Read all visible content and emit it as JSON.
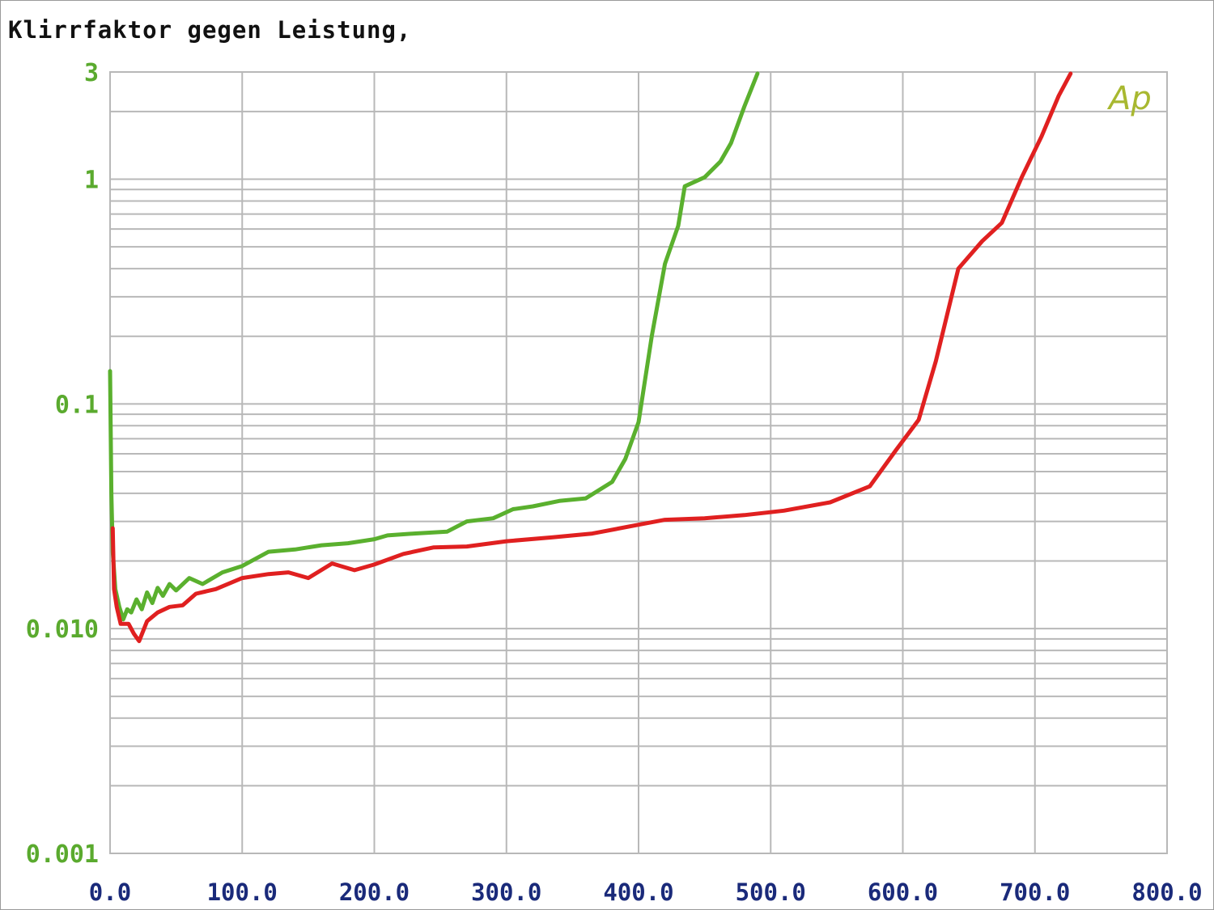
{
  "title": "Klirrfaktor gegen Leistung,",
  "chart_data": {
    "type": "line",
    "title": "Klirrfaktor gegen Leistung,",
    "xlabel": "",
    "ylabel": "",
    "xlim": [
      0,
      800
    ],
    "ylim": [
      0.001,
      3
    ],
    "yscale": "log",
    "grid": true,
    "legend": "none",
    "brand_label": "Ap",
    "colors": {
      "grid": "#b8b8b8",
      "ytick": "#5aaa2e",
      "xtick": "#1a2a7a",
      "brand": "#a8b830",
      "green_series": "#5ab02e",
      "red_series": "#e02020"
    },
    "x_ticks": [
      {
        "value": 0,
        "label": "0.0"
      },
      {
        "value": 100,
        "label": "100.0"
      },
      {
        "value": 200,
        "label": "200.0"
      },
      {
        "value": 300,
        "label": "300.0"
      },
      {
        "value": 400,
        "label": "400.0"
      },
      {
        "value": 500,
        "label": "500.0"
      },
      {
        "value": 600,
        "label": "600.0"
      },
      {
        "value": 700,
        "label": "700.0"
      },
      {
        "value": 800,
        "label": "800.0"
      }
    ],
    "y_ticks": [
      {
        "value": 3,
        "label": "3"
      },
      {
        "value": 1,
        "label": "1"
      },
      {
        "value": 0.1,
        "label": "0.1"
      },
      {
        "value": 0.01,
        "label": "0.010"
      },
      {
        "value": 0.001,
        "label": "0.001"
      }
    ],
    "series": [
      {
        "color": "#5ab02e",
        "points": [
          [
            0,
            0.14
          ],
          [
            1,
            0.04
          ],
          [
            2,
            0.022
          ],
          [
            4,
            0.015
          ],
          [
            7,
            0.0125
          ],
          [
            10,
            0.011
          ],
          [
            13,
            0.0122
          ],
          [
            16,
            0.0118
          ],
          [
            20,
            0.0135
          ],
          [
            24,
            0.0122
          ],
          [
            28,
            0.0145
          ],
          [
            32,
            0.013
          ],
          [
            36,
            0.0152
          ],
          [
            40,
            0.014
          ],
          [
            45,
            0.0158
          ],
          [
            50,
            0.0148
          ],
          [
            60,
            0.0168
          ],
          [
            70,
            0.0158
          ],
          [
            85,
            0.0178
          ],
          [
            100,
            0.019
          ],
          [
            120,
            0.022
          ],
          [
            140,
            0.0225
          ],
          [
            160,
            0.0235
          ],
          [
            180,
            0.024
          ],
          [
            200,
            0.025
          ],
          [
            210,
            0.026
          ],
          [
            230,
            0.0265
          ],
          [
            255,
            0.027
          ],
          [
            270,
            0.03
          ],
          [
            290,
            0.031
          ],
          [
            305,
            0.034
          ],
          [
            320,
            0.035
          ],
          [
            340,
            0.037
          ],
          [
            360,
            0.038
          ],
          [
            380,
            0.045
          ],
          [
            390,
            0.057
          ],
          [
            400,
            0.083
          ],
          [
            410,
            0.2
          ],
          [
            420,
            0.42
          ],
          [
            430,
            0.62
          ],
          [
            435,
            0.93
          ],
          [
            450,
            1.02
          ],
          [
            462,
            1.2
          ],
          [
            470,
            1.45
          ],
          [
            480,
            2.1
          ],
          [
            490,
            2.95
          ]
        ]
      },
      {
        "color": "#e02020",
        "points": [
          [
            2,
            0.028
          ],
          [
            3,
            0.015
          ],
          [
            5,
            0.0125
          ],
          [
            8,
            0.0105
          ],
          [
            14,
            0.0105
          ],
          [
            18,
            0.0095
          ],
          [
            22,
            0.0088
          ],
          [
            28,
            0.0108
          ],
          [
            36,
            0.0118
          ],
          [
            45,
            0.0125
          ],
          [
            55,
            0.0127
          ],
          [
            65,
            0.0143
          ],
          [
            80,
            0.015
          ],
          [
            100,
            0.0168
          ],
          [
            120,
            0.0175
          ],
          [
            135,
            0.0178
          ],
          [
            150,
            0.0168
          ],
          [
            168,
            0.0195
          ],
          [
            185,
            0.0182
          ],
          [
            200,
            0.0193
          ],
          [
            222,
            0.0215
          ],
          [
            245,
            0.023
          ],
          [
            270,
            0.0232
          ],
          [
            300,
            0.0245
          ],
          [
            335,
            0.0255
          ],
          [
            365,
            0.0265
          ],
          [
            400,
            0.029
          ],
          [
            420,
            0.0305
          ],
          [
            450,
            0.031
          ],
          [
            480,
            0.032
          ],
          [
            510,
            0.0335
          ],
          [
            545,
            0.0365
          ],
          [
            575,
            0.043
          ],
          [
            595,
            0.0625
          ],
          [
            612,
            0.085
          ],
          [
            625,
            0.155
          ],
          [
            642,
            0.4
          ],
          [
            660,
            0.53
          ],
          [
            675,
            0.64
          ],
          [
            690,
            1.02
          ],
          [
            705,
            1.55
          ],
          [
            718,
            2.35
          ],
          [
            727,
            2.95
          ]
        ]
      }
    ]
  }
}
